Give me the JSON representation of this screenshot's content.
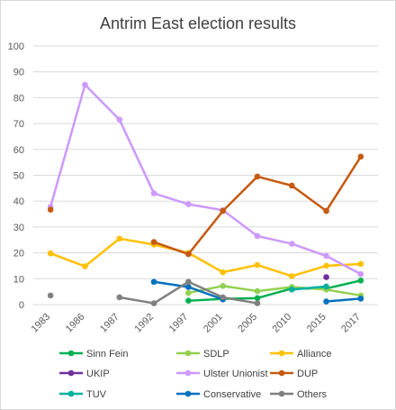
{
  "chart_data": {
    "type": "line",
    "title": "Antrim East election results",
    "xlabel": "",
    "ylabel": "",
    "ylim": [
      0,
      100
    ],
    "yticks": [
      0,
      10,
      20,
      30,
      40,
      50,
      60,
      70,
      80,
      90,
      100
    ],
    "categories": [
      "1983",
      "1986",
      "1987",
      "1992",
      "1997",
      "2001",
      "2005",
      "2010",
      "2015",
      "2017"
    ],
    "grid": true,
    "legend_position": "bottom",
    "series": [
      {
        "name": "Sinn Fein",
        "color": "#00b050",
        "values": [
          null,
          null,
          null,
          null,
          1.5,
          2.2,
          2.5,
          6.2,
          6.2,
          9.3
        ]
      },
      {
        "name": "SDLP",
        "color": "#92d050",
        "values": [
          null,
          null,
          null,
          null,
          4.5,
          7.2,
          5.2,
          6.8,
          5.8,
          3.5
        ]
      },
      {
        "name": "Alliance",
        "color": "#ffc000",
        "values": [
          19.8,
          14.8,
          25.5,
          23.2,
          20.0,
          12.5,
          15.3,
          11.0,
          15.0,
          15.7
        ]
      },
      {
        "name": "UKIP",
        "color": "#7030a0",
        "values": [
          null,
          null,
          null,
          null,
          null,
          null,
          null,
          null,
          10.6,
          null
        ]
      },
      {
        "name": "Ulster Unionist",
        "color": "#cc99ff",
        "values": [
          37.8,
          85.0,
          71.5,
          43.0,
          38.8,
          36.5,
          26.5,
          23.5,
          18.8,
          11.8
        ]
      },
      {
        "name": "DUP",
        "color": "#c55a11",
        "values": [
          36.7,
          null,
          null,
          24.2,
          19.5,
          36.2,
          49.5,
          46.0,
          36.2,
          57.2
        ]
      },
      {
        "name": "TUV",
        "color": "#00b0a0",
        "values": [
          null,
          null,
          null,
          null,
          null,
          null,
          null,
          5.8,
          7.0,
          null
        ]
      },
      {
        "name": "Conservative",
        "color": "#0070c0",
        "values": [
          null,
          null,
          null,
          8.8,
          6.8,
          2.0,
          null,
          null,
          1.2,
          2.3
        ]
      },
      {
        "name": "Others",
        "color": "#808080",
        "values": [
          3.5,
          null,
          2.8,
          0.5,
          8.8,
          2.8,
          0.5,
          null,
          null,
          null
        ]
      }
    ]
  }
}
